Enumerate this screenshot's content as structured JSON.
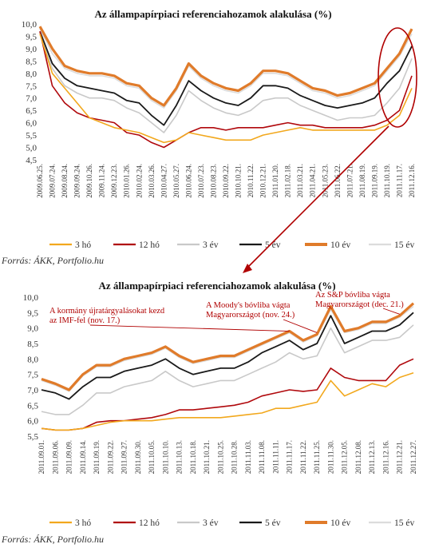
{
  "colors": {
    "3 hó": "#f2a81d",
    "12 hó": "#b0080c",
    "3 év": "#c9c9c9",
    "5 év": "#1a1a1a",
    "10 év": "#e07b2a",
    "15 év": "#dcdcdc",
    "annotation": "#b00000"
  },
  "chart_data": [
    {
      "type": "line",
      "title": "Az állampapírpiaci referenciahozamok alakulása (%)",
      "xlabel": "",
      "ylabel": "",
      "ylim": [
        4.5,
        10.0
      ],
      "yticks": [
        "10,0",
        "9,5",
        "9,0",
        "8,5",
        "8,0",
        "7,5",
        "7,0",
        "6,5",
        "6,0",
        "5,5",
        "5,0",
        "4,5"
      ],
      "categories": [
        "2009.06.25.",
        "2009.07.24.",
        "2009.08.24.",
        "2009.09.24.",
        "2009.10.26.",
        "2009.11.24.",
        "2009.12.23.",
        "2010.01.26.",
        "2010.02.24.",
        "2010.03.26.",
        "2010.04.27.",
        "2010.05.27.",
        "2010.06.24.",
        "2010.07.23.",
        "2010.08.23.",
        "2010.09.22.",
        "2010.10.21.",
        "2010.11.22.",
        "2010.12.21.",
        "2011.01.20.",
        "2011.02.18.",
        "2011.03.21.",
        "2011.04.21.",
        "2011.05.23.",
        "2011.06.22.",
        "2011.07.21.",
        "2011.08.19.",
        "2011.09.19.",
        "2011.10.19.",
        "2011.11.17.",
        "2011.12.16."
      ],
      "series": [
        {
          "name": "3 hó",
          "values": [
            9.6,
            8.0,
            7.4,
            6.8,
            6.2,
            6.0,
            5.8,
            5.7,
            5.6,
            5.4,
            5.2,
            5.3,
            5.6,
            5.5,
            5.4,
            5.3,
            5.3,
            5.3,
            5.5,
            5.6,
            5.7,
            5.8,
            5.7,
            5.7,
            5.7,
            5.7,
            5.7,
            5.7,
            5.9,
            6.3,
            7.4
          ]
        },
        {
          "name": "12 hó",
          "values": [
            9.7,
            7.5,
            6.8,
            6.4,
            6.2,
            6.1,
            6.0,
            5.6,
            5.5,
            5.2,
            5.0,
            5.3,
            5.6,
            5.8,
            5.8,
            5.7,
            5.8,
            5.8,
            5.8,
            5.9,
            6.0,
            5.9,
            5.9,
            5.8,
            5.8,
            5.8,
            5.8,
            5.9,
            6.1,
            6.5,
            7.9
          ]
        },
        {
          "name": "3 év",
          "values": [
            9.6,
            8.2,
            7.5,
            7.2,
            7.0,
            7.0,
            6.9,
            6.6,
            6.4,
            6.0,
            5.6,
            6.3,
            7.3,
            6.9,
            6.6,
            6.4,
            6.3,
            6.5,
            6.9,
            7.0,
            7.0,
            6.7,
            6.5,
            6.3,
            6.1,
            6.2,
            6.2,
            6.3,
            6.8,
            7.4,
            8.6
          ]
        },
        {
          "name": "5 év",
          "values": [
            9.7,
            8.4,
            7.8,
            7.5,
            7.4,
            7.3,
            7.2,
            6.9,
            6.8,
            6.3,
            5.9,
            6.7,
            7.7,
            7.3,
            7.0,
            6.8,
            6.7,
            7.0,
            7.5,
            7.5,
            7.4,
            7.1,
            6.9,
            6.7,
            6.6,
            6.7,
            6.8,
            7.0,
            7.6,
            8.1,
            9.1
          ]
        },
        {
          "name": "10 év",
          "values": [
            9.9,
            9.0,
            8.3,
            8.1,
            8.0,
            8.0,
            7.9,
            7.6,
            7.5,
            7.0,
            6.7,
            7.4,
            8.4,
            7.9,
            7.6,
            7.4,
            7.3,
            7.6,
            8.1,
            8.1,
            8.0,
            7.7,
            7.4,
            7.3,
            7.1,
            7.2,
            7.4,
            7.6,
            8.2,
            8.8,
            9.8
          ]
        },
        {
          "name": "15 év",
          "values": [
            9.8,
            8.8,
            8.2,
            8.0,
            7.9,
            7.9,
            7.8,
            7.5,
            7.4,
            6.9,
            6.6,
            7.3,
            8.3,
            7.8,
            7.5,
            7.3,
            7.2,
            7.5,
            8.0,
            8.0,
            7.9,
            7.6,
            7.3,
            7.2,
            7.0,
            7.1,
            7.3,
            7.5,
            8.1,
            8.7,
            9.6
          ]
        }
      ],
      "annotations": [],
      "legend": "bottom",
      "source": "Forrás: ÁKK, Portfolio.hu"
    },
    {
      "type": "line",
      "title": "Az állampapírpiaci referenciahozamok alakulása (%)",
      "xlabel": "",
      "ylabel": "",
      "ylim": [
        5.5,
        10.0
      ],
      "yticks": [
        "10,0",
        "9,5",
        "9,0",
        "8,5",
        "8,0",
        "7,5",
        "7,0",
        "6,5",
        "6,0",
        "5,5"
      ],
      "categories": [
        "2011.09.01.",
        "2011.09.06.",
        "2011.09.09.",
        "2011.09.14.",
        "2011.09.19.",
        "2011.09.22.",
        "2011.09.27.",
        "2011.09.30.",
        "2011.10.05.",
        "2011.10.10.",
        "2011.10.13.",
        "2011.10.18.",
        "2011.10.21.",
        "2011.10.25.",
        "2011.10.28.",
        "2011.11.03.",
        "2011.11.08.",
        "2011.11.11.",
        "2011.11.17.",
        "2011.11.22.",
        "2011.11.25.",
        "2011.11.30.",
        "2011.12.05.",
        "2011.12.08.",
        "2011.12.13.",
        "2011.12.16.",
        "2011.12.21.",
        "2011.12.27."
      ],
      "series": [
        {
          "name": "3 hó",
          "values": [
            5.75,
            5.7,
            5.7,
            5.75,
            5.85,
            5.95,
            6.0,
            6.0,
            6.0,
            6.05,
            6.1,
            6.1,
            6.1,
            6.1,
            6.15,
            6.2,
            6.25,
            6.4,
            6.4,
            6.5,
            6.6,
            7.3,
            6.8,
            7.0,
            7.2,
            7.1,
            7.4,
            7.55
          ]
        },
        {
          "name": "12 hó",
          "values": [
            5.75,
            5.7,
            5.7,
            5.75,
            5.95,
            6.0,
            6.0,
            6.05,
            6.1,
            6.2,
            6.35,
            6.35,
            6.4,
            6.45,
            6.5,
            6.6,
            6.8,
            6.9,
            7.0,
            6.95,
            7.0,
            7.7,
            7.4,
            7.3,
            7.3,
            7.3,
            7.8,
            8.0
          ]
        },
        {
          "name": "3 év",
          "values": [
            6.3,
            6.2,
            6.2,
            6.5,
            6.9,
            6.9,
            7.1,
            7.2,
            7.3,
            7.6,
            7.3,
            7.1,
            7.2,
            7.3,
            7.3,
            7.5,
            7.7,
            7.9,
            8.2,
            8.0,
            8.1,
            9.0,
            8.2,
            8.4,
            8.6,
            8.6,
            8.7,
            9.1
          ]
        },
        {
          "name": "5 év",
          "values": [
            7.0,
            6.9,
            6.7,
            7.1,
            7.4,
            7.4,
            7.6,
            7.7,
            7.8,
            8.0,
            7.7,
            7.5,
            7.6,
            7.7,
            7.7,
            7.9,
            8.2,
            8.4,
            8.6,
            8.3,
            8.5,
            9.4,
            8.5,
            8.7,
            8.9,
            8.9,
            9.1,
            9.5
          ]
        },
        {
          "name": "10 év",
          "values": [
            7.35,
            7.2,
            7.0,
            7.5,
            7.8,
            7.8,
            8.0,
            8.1,
            8.2,
            8.4,
            8.1,
            7.9,
            8.0,
            8.1,
            8.1,
            8.3,
            8.5,
            8.7,
            8.9,
            8.6,
            8.8,
            9.7,
            8.9,
            9.0,
            9.2,
            9.2,
            9.4,
            9.8
          ]
        },
        {
          "name": "15 év",
          "values": [
            7.3,
            7.15,
            6.95,
            7.45,
            7.75,
            7.75,
            7.95,
            8.05,
            8.15,
            8.35,
            8.05,
            7.85,
            7.95,
            8.05,
            8.05,
            8.25,
            8.45,
            8.65,
            8.85,
            8.55,
            8.75,
            9.6,
            8.85,
            8.95,
            9.15,
            9.15,
            9.35,
            9.7
          ]
        }
      ],
      "annotations": [
        {
          "text": [
            "A kormány újratárgyalásokat kezd",
            "az IMF-fel (nov. 17.)"
          ]
        },
        {
          "text": [
            "A Moody's bóvliba vágta",
            "Magyarországot (nov. 24.)"
          ]
        },
        {
          "text": [
            "Az S&P bóvliba vágta",
            "Magyarországot (dec. 21.)"
          ]
        }
      ],
      "legend": "bottom",
      "source": "Forrás: ÁKK, Portfolio.hu"
    }
  ]
}
